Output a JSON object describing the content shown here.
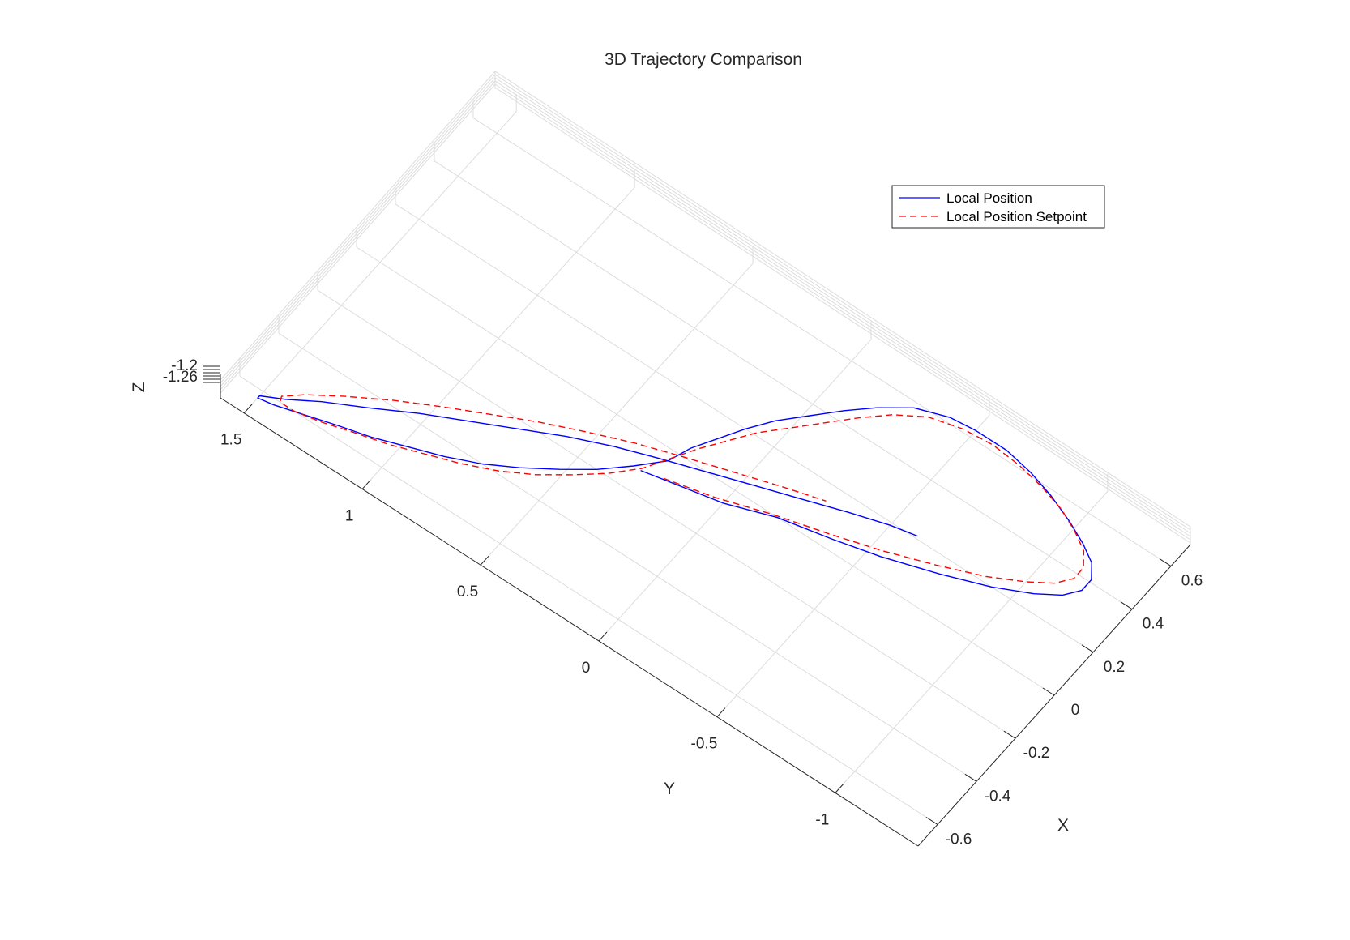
{
  "chart_data": {
    "type": "line",
    "title": "3D Trajectory Comparison",
    "xlabel": "X",
    "ylabel": "Y",
    "zlabel": "Z",
    "x_ticks": [
      "-0.6",
      "-0.4",
      "-0.2",
      "0",
      "0.2",
      "0.4",
      "0.6"
    ],
    "y_ticks": [
      "-1",
      "-0.5",
      "0",
      "0.5",
      "1",
      "1.5"
    ],
    "z_ticks": [
      "-1.2",
      "-1.26"
    ],
    "x_tick_values": [
      -0.6,
      -0.4,
      -0.2,
      0,
      0.2,
      0.4,
      0.6
    ],
    "y_tick_values": [
      -1,
      -0.5,
      0,
      0.5,
      1,
      1.5
    ],
    "xlim": [
      -0.7,
      0.7
    ],
    "ylim": [
      -1.35,
      1.6
    ],
    "grid": true,
    "legend_position": "top-right",
    "series": [
      {
        "name": "Local Position",
        "color": "#0000ff",
        "line_style": "solid",
        "x": [
          -0.12,
          -0.1,
          -0.06,
          0.0,
          0.04,
          0.08,
          0.14,
          0.2,
          0.26,
          0.31,
          0.36,
          0.41,
          0.46,
          0.5,
          0.54,
          0.58,
          0.61,
          0.63,
          0.63,
          0.62,
          0.58,
          0.51,
          0.44,
          0.36,
          0.28,
          0.2,
          0.12,
          0.04,
          -0.04,
          -0.12,
          -0.2,
          -0.27,
          -0.34,
          -0.4,
          -0.45,
          -0.49,
          -0.53,
          -0.56,
          -0.59,
          -0.62,
          -0.63,
          -0.62,
          -0.58,
          -0.52,
          -0.45,
          -0.37,
          -0.3,
          -0.23,
          -0.16,
          -0.1,
          -0.05,
          0.0,
          0.05,
          0.1,
          0.15,
          0.19,
          0.21
        ],
        "y": [
          0.3,
          0.2,
          0.0,
          -0.18,
          -0.38,
          -0.55,
          -0.75,
          -0.92,
          -1.05,
          -1.13,
          -1.17,
          -1.17,
          -1.13,
          -1.06,
          -0.97,
          -0.86,
          -0.75,
          -0.63,
          -0.5,
          -0.4,
          -0.28,
          -0.18,
          -0.1,
          -0.02,
          0.06,
          0.12,
          0.17,
          0.22,
          0.25,
          0.33,
          0.42,
          0.52,
          0.63,
          0.74,
          0.86,
          0.98,
          1.1,
          1.22,
          1.33,
          1.44,
          1.5,
          1.5,
          1.42,
          1.32,
          1.18,
          1.03,
          0.88,
          0.73,
          0.58,
          0.43,
          0.28,
          0.12,
          -0.04,
          -0.2,
          -0.36,
          -0.5,
          -0.6
        ]
      },
      {
        "name": "Local Position Setpoint",
        "color": "#ff0000",
        "line_style": "dashed",
        "x": [
          -0.1,
          -0.06,
          0.0,
          0.05,
          0.1,
          0.16,
          0.22,
          0.28,
          0.33,
          0.38,
          0.43,
          0.48,
          0.52,
          0.56,
          0.59,
          0.61,
          0.62,
          0.61,
          0.58,
          0.52,
          0.45,
          0.37,
          0.29,
          0.21,
          0.13,
          0.05,
          -0.03,
          -0.11,
          -0.19,
          -0.26,
          -0.33,
          -0.39,
          -0.44,
          -0.48,
          -0.52,
          -0.55,
          -0.58,
          -0.6,
          -0.6,
          -0.58,
          -0.53,
          -0.46,
          -0.38,
          -0.31,
          -0.24,
          -0.17,
          -0.11,
          -0.05,
          0.0,
          0.05,
          0.1,
          0.14
        ],
        "y": [
          0.22,
          0.04,
          -0.16,
          -0.36,
          -0.54,
          -0.72,
          -0.88,
          -1.0,
          -1.08,
          -1.12,
          -1.12,
          -1.08,
          -1.01,
          -0.92,
          -0.81,
          -0.7,
          -0.58,
          -0.46,
          -0.34,
          -0.24,
          -0.16,
          -0.08,
          0.0,
          0.08,
          0.14,
          0.2,
          0.25,
          0.3,
          0.38,
          0.47,
          0.57,
          0.68,
          0.8,
          0.92,
          1.04,
          1.16,
          1.27,
          1.37,
          1.43,
          1.44,
          1.38,
          1.27,
          1.13,
          0.99,
          0.84,
          0.69,
          0.54,
          0.38,
          0.22,
          0.05,
          -0.12,
          -0.27
        ]
      }
    ]
  }
}
